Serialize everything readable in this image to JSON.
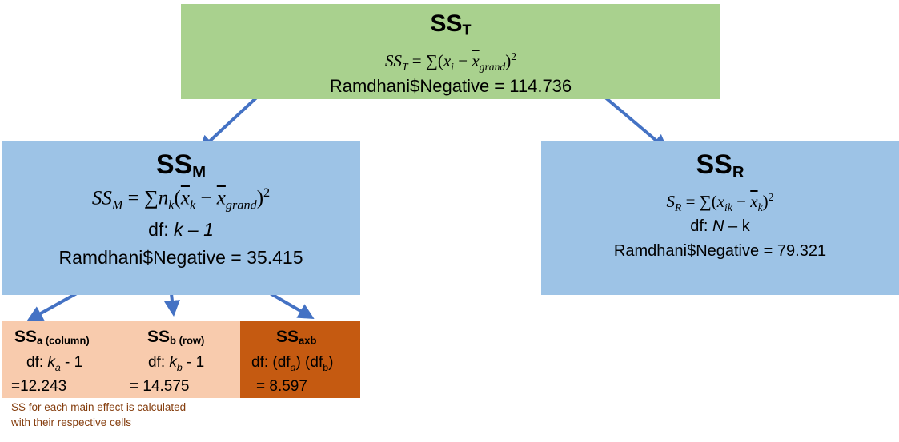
{
  "sst": {
    "title_main": "SS",
    "title_sub": "T",
    "value": "Ramdhani$Negative = 114.736"
  },
  "ssm": {
    "title_main": "SS",
    "title_sub": "M",
    "df_prefix": "df: ",
    "df_expr": "k – 1",
    "value": "Ramdhani$Negative = 35.415"
  },
  "ssr": {
    "title_main": "SS",
    "title_sub": "R",
    "df_prefix": "df: ",
    "df_n": "N",
    "df_rest": " – k",
    "value": "Ramdhani$Negative = 79.321"
  },
  "ssa": {
    "title_main": "SS",
    "title_sub": "a (column)",
    "df_prefix": "df: ",
    "df_k": "k",
    "df_k_sub": "a",
    "df_rest": " - 1",
    "value": "=12.243"
  },
  "ssb": {
    "title_main": "SS",
    "title_sub": "b (row)",
    "df_prefix": "df: ",
    "df_k": "k",
    "df_k_sub": "b",
    "df_rest": " - 1",
    "value": "= 14.575"
  },
  "ssab": {
    "title_main": "SS",
    "title_sub": "axb",
    "df_prefix": "df: (df",
    "df_a_sub": "a",
    "df_mid": ") (df",
    "df_b_sub": "b",
    "df_end": ")",
    "value": "= 8.597"
  },
  "note": {
    "line1": "SS for each main effect is calculated",
    "line2": "with their respective cells"
  },
  "colors": {
    "green_box": "#a9d18e",
    "blue_box": "#9dc3e6",
    "peach_box": "#f8cbad",
    "orange_box": "#c55a11",
    "arrow": "#4472c4",
    "note_text": "#843c0c"
  }
}
